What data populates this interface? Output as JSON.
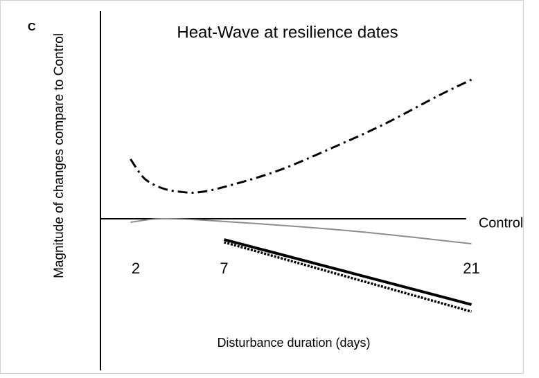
{
  "chart_data": {
    "type": "line",
    "panel_label": "C",
    "title": "Heat-Wave at resilience dates",
    "ylabel": "Magnitude of changes compare to Control",
    "xlabel": "Disturbance duration (days)",
    "xlim": [
      0,
      20.7
    ],
    "ylim": [
      -7.3,
      10
    ],
    "xticks": [
      2,
      7,
      21
    ],
    "control_line": {
      "y": 0,
      "label": "Control"
    },
    "series": [
      {
        "color": "#000000",
        "dash": "dashdot",
        "width": 3,
        "x": [
          1.7,
          2.5,
          3.5,
          4.5,
          5.5,
          7,
          10,
          13,
          16,
          19,
          21
        ],
        "values": [
          2.87,
          1.93,
          1.47,
          1.3,
          1.27,
          1.53,
          2.3,
          3.37,
          4.53,
          5.87,
          6.7
        ]
      },
      {
        "color": "#8c8c8c",
        "dash": "solid",
        "width": 2,
        "x": [
          1.7,
          3.5,
          7,
          14,
          21
        ],
        "values": [
          -0.17,
          0,
          -0.13,
          -0.57,
          -1.2
        ]
      },
      {
        "color": "#000000",
        "dash": "solid",
        "width": 4,
        "x": [
          7,
          21
        ],
        "values": [
          -1.0,
          -4.13
        ]
      },
      {
        "color": "#000000",
        "dash": "dotted",
        "width": 3.5,
        "x": [
          7,
          21
        ],
        "values": [
          -1.13,
          -4.47
        ]
      }
    ]
  }
}
